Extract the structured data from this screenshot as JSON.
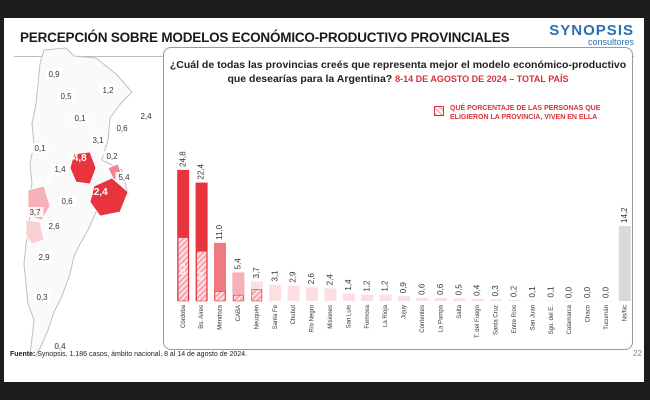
{
  "header": {
    "title": "PERCEPCIÓN SOBRE MODELOS ECONÓMICO-PRODUCTIVO PROVINCIALES",
    "logo_main": "SYNOPSIS",
    "logo_sub": "consultores"
  },
  "question": {
    "text": "¿Cuál de todas las provincias creés que representa mejor el modelo económico-productivo que desearías para la Argentina?",
    "highlight": "8-14 DE AGOSTO DE 2024 – TOTAL PAÍS"
  },
  "legend": {
    "label": "QUÉ PORCENTAJE DE LAS PERSONAS QUE ELIGIERON LA PROVINCIA, VIVEN EN ELLA"
  },
  "footer": {
    "label": "Fuente:",
    "text": "Synopsis, 1.186 casos, ámbito nacional, 8 al 14 de agosto de 2024."
  },
  "page_number": "22",
  "map": {
    "labels": [
      "0,9",
      "1,2",
      "0,5",
      "2,4",
      "0,1",
      "0,6",
      "3,1",
      "0,1",
      "24,8",
      "0,2",
      "1,4",
      "5,4",
      "11,0",
      "22,4",
      "0,6",
      "3,7",
      "2,6",
      "2,9",
      "0,3",
      "0,4"
    ]
  },
  "chart_data": {
    "type": "bar",
    "categories": [
      "Córdoba",
      "Bs. Aires",
      "Mendoza",
      "CABA",
      "Neuquén",
      "Santa Fe",
      "Chubut",
      "Río Negro",
      "Misiones",
      "San Luis",
      "Formosa",
      "La Rioja",
      "Jujuy",
      "Corrientes",
      "La Pampa",
      "Salta",
      "T. del Fuego",
      "Santa Cruz",
      "Entre Ríos",
      "San Juan",
      "Sgo. del E.",
      "Catamarca",
      "Chaco",
      "Tucumán",
      "Ns/Nc"
    ],
    "values": [
      24.8,
      22.4,
      11.0,
      5.4,
      3.7,
      3.1,
      2.9,
      2.6,
      2.4,
      1.4,
      1.2,
      1.2,
      0.9,
      0.6,
      0.6,
      0.5,
      0.4,
      0.3,
      0.2,
      0.1,
      0.1,
      0.0,
      0.0,
      0.0,
      14.2
    ],
    "value_labels": [
      "24,8",
      "22,4",
      "11,0",
      "5,4",
      "3,7",
      "3,1",
      "2,9",
      "2,6",
      "2,4",
      "1,4",
      "1,2",
      "1,2",
      "0,9",
      "0,6",
      "0,6",
      "0,5",
      "0,4",
      "0,3",
      "0,2",
      "0,1",
      "0,1",
      "0,0",
      "0,0",
      "0,0",
      "14,2"
    ],
    "resident_share": [
      {
        "category": "Córdoba",
        "value": 12.0,
        "label": "12,0"
      },
      {
        "category": "Bs. Aires",
        "value": 9.4,
        "label": "9,4"
      },
      {
        "category": "Mendoza",
        "value": 1.8
      },
      {
        "category": "CABA",
        "value": 1.1
      },
      {
        "category": "Neuquén",
        "value": 2.2
      }
    ],
    "colors": {
      "strong": "#e8343d",
      "medium": "#ef7a80",
      "light": "#f5b1b5",
      "pale": "#fbdfe1",
      "nsnc": "#dadada",
      "hatch": "#f6b7bc"
    },
    "ylim": [
      0,
      28
    ],
    "grid": false
  }
}
